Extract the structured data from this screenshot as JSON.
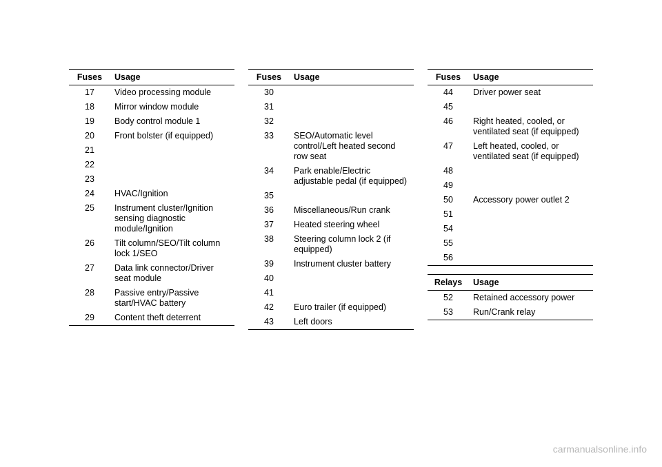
{
  "headers": {
    "fuses": "Fuses",
    "usage": "Usage",
    "relays": "Relays"
  },
  "col1": [
    {
      "num": "17",
      "usage": "Video processing module"
    },
    {
      "num": "18",
      "usage": "Mirror window module"
    },
    {
      "num": "19",
      "usage": "Body control module 1"
    },
    {
      "num": "20",
      "usage": "Front bolster (if equipped)"
    },
    {
      "num": "21",
      "usage": ""
    },
    {
      "num": "22",
      "usage": ""
    },
    {
      "num": "23",
      "usage": ""
    },
    {
      "num": "24",
      "usage": "HVAC/Ignition"
    },
    {
      "num": "25",
      "usage": "Instrument cluster/Ignition sensing diagnostic module/Ignition"
    },
    {
      "num": "26",
      "usage": "Tilt column/SEO/Tilt column lock 1/SEO"
    },
    {
      "num": "27",
      "usage": "Data link connector/Driver seat module"
    },
    {
      "num": "28",
      "usage": "Passive entry/Passive start/HVAC battery"
    },
    {
      "num": "29",
      "usage": "Content theft deterrent"
    }
  ],
  "col2": [
    {
      "num": "30",
      "usage": ""
    },
    {
      "num": "31",
      "usage": ""
    },
    {
      "num": "32",
      "usage": ""
    },
    {
      "num": "33",
      "usage": "SEO/Automatic level control/Left heated second row seat"
    },
    {
      "num": "34",
      "usage": "Park enable/Electric adjustable pedal (if equipped)"
    },
    {
      "num": "35",
      "usage": ""
    },
    {
      "num": "36",
      "usage": "Miscellaneous/Run crank"
    },
    {
      "num": "37",
      "usage": "Heated steering wheel"
    },
    {
      "num": "38",
      "usage": "Steering column lock 2 (if equipped)"
    },
    {
      "num": "39",
      "usage": "Instrument cluster battery"
    },
    {
      "num": "40",
      "usage": ""
    },
    {
      "num": "41",
      "usage": ""
    },
    {
      "num": "42",
      "usage": "Euro trailer (if equipped)"
    },
    {
      "num": "43",
      "usage": "Left doors"
    }
  ],
  "col3_fuses": [
    {
      "num": "44",
      "usage": "Driver power seat"
    },
    {
      "num": "45",
      "usage": ""
    },
    {
      "num": "46",
      "usage": "Right heated, cooled, or ventilated seat (if equipped)"
    },
    {
      "num": "47",
      "usage": "Left heated, cooled, or ventilated seat (if equipped)"
    },
    {
      "num": "48",
      "usage": ""
    },
    {
      "num": "49",
      "usage": ""
    },
    {
      "num": "50",
      "usage": "Accessory power outlet 2"
    },
    {
      "num": "51",
      "usage": ""
    },
    {
      "num": "54",
      "usage": ""
    },
    {
      "num": "55",
      "usage": ""
    },
    {
      "num": "56",
      "usage": ""
    }
  ],
  "col3_relays": [
    {
      "num": "52",
      "usage": "Retained accessory power"
    },
    {
      "num": "53",
      "usage": "Run/Crank relay"
    }
  ],
  "watermark": "carmanualsonline.info"
}
